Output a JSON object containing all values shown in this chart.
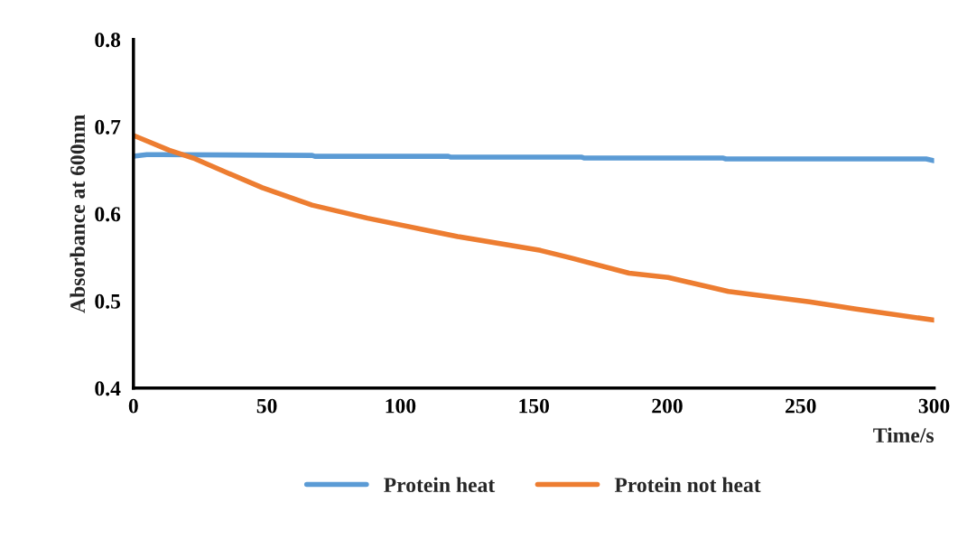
{
  "chart_data": {
    "type": "line",
    "xlabel": "Time/s",
    "ylabel": "Absorbance at 600nm",
    "xlim": [
      0,
      300
    ],
    "xticks": [
      0,
      50,
      100,
      150,
      200,
      250,
      300
    ],
    "ylim": [
      0.4,
      0.8
    ],
    "yticks": [
      0.4,
      0.5,
      0.6,
      0.7,
      0.8
    ],
    "grid": false,
    "legend": "bottom",
    "marker": "none",
    "line_style": "solid",
    "series": [
      {
        "name": "Protein heat",
        "color": "#5b9bd5",
        "x": [
          0,
          5,
          10,
          67,
          68,
          118,
          119,
          168,
          169,
          221,
          222,
          297,
          300
        ],
        "values": [
          0.666,
          0.668,
          0.668,
          0.667,
          0.666,
          0.666,
          0.665,
          0.665,
          0.664,
          0.664,
          0.663,
          0.663,
          0.661
        ]
      },
      {
        "name": "Protein not heat",
        "color": "#ed7d31",
        "x": [
          0,
          13.4,
          22.4,
          33.7,
          48.3,
          66.9,
          87.7,
          110.2,
          121.5,
          152.5,
          163.2,
          185.7,
          200.3,
          222.9,
          253.3,
          270.2,
          300
        ],
        "values": [
          0.69,
          0.673,
          0.664,
          0.649,
          0.63,
          0.61,
          0.595,
          0.581,
          0.574,
          0.558,
          0.55,
          0.532,
          0.527,
          0.511,
          0.499,
          0.491,
          0.478
        ]
      }
    ]
  }
}
